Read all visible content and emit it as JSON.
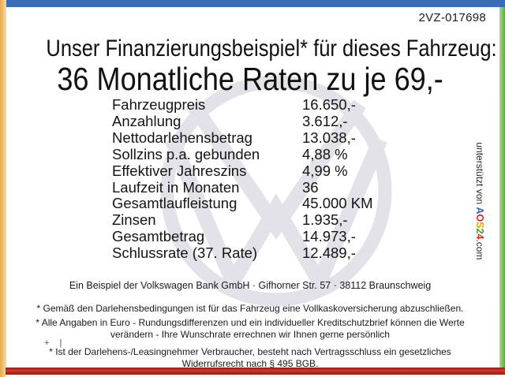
{
  "doc_id": "2VZ-017698",
  "header": {
    "title": "Unser Finanzierungsbeispiel* für dieses Fahrzeug:",
    "subtitle": "36 Monatliche Raten zu je 69,-"
  },
  "finance_table": {
    "rows": [
      {
        "label": "Fahrzeugpreis",
        "value": "16.650,-"
      },
      {
        "label": "Anzahlung",
        "value": "3.612,-"
      },
      {
        "label": "Nettodarlehensbetrag",
        "value": "13.038,-"
      },
      {
        "label": "Sollzins p.a. gebunden",
        "value": "4,88 %"
      },
      {
        "label": "Effektiver Jahreszins",
        "value": "4,99 %"
      },
      {
        "label": "Laufzeit in Monaten",
        "value": "36"
      },
      {
        "label": "Gesamtlaufleistung",
        "value": "45.000 KM"
      },
      {
        "label": "Zinsen",
        "value": "1.935,-"
      },
      {
        "label": "Gesamtbetrag",
        "value": "14.973,-"
      },
      {
        "label": "Schlussrate (37. Rate)",
        "value": "12.489,-"
      }
    ]
  },
  "footer": {
    "bank_line": "Ein Beispiel der Volkswagen Bank GmbH · Gifhorner Str. 57 · 38112 Braunschweig",
    "fine_print": [
      "* Gemäß den Darlehensbedingungen ist für das Fahrzeug eine Vollkaskoversicherung abzuschließen.",
      "* Alle Angaben in Euro - Rundungsdifferenzen und ein individueller Kreditschutzbrief können die Werte verändern - Ihre Wunschrate errechnen wir Ihnen gerne persönlich",
      "* Ist der Darlehens-/Leasingnehmer Verbraucher, besteht nach Vertragsschluss ein gesetzliches Widerrufsrecht nach § 495 BGB."
    ]
  },
  "supporter": {
    "prefix": "unterstützt von ",
    "brand": [
      {
        "ch": "A",
        "color": "#3a66c8"
      },
      {
        "ch": "O",
        "color": "#d7281e"
      },
      {
        "ch": "S",
        "color": "#e8a400"
      },
      {
        "ch": "2",
        "color": "#3f9c35"
      },
      {
        "ch": "4",
        "color": "#d7281e"
      }
    ],
    "suffix": ".com"
  },
  "speck_mark": "+ |",
  "colors": {
    "frame_top": "#3a6cb8",
    "frame_left": "#f0bd63",
    "frame_right": "#72c146",
    "frame_bottom": "#c32a1d",
    "watermark": "#e2e2e8",
    "text": "#141414"
  }
}
